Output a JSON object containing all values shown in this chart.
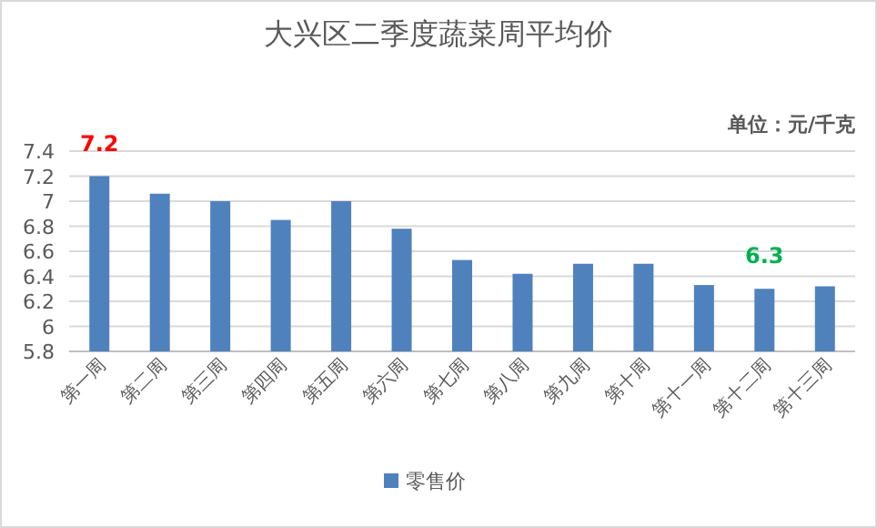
{
  "chart_data": {
    "type": "bar",
    "title": "大兴区二季度蔬菜周平均价",
    "categories": [
      "第一周",
      "第二周",
      "第三周",
      "第四周",
      "第五周",
      "第六周",
      "第七周",
      "第八周",
      "第九周",
      "第十周",
      "第十一周",
      "第十二周",
      "第十三周"
    ],
    "series": [
      {
        "name": "零售价",
        "color": "#4f81bd",
        "values": [
          7.2,
          7.06,
          7.0,
          6.85,
          7.0,
          6.78,
          6.53,
          6.42,
          6.5,
          6.5,
          6.33,
          6.3,
          6.32
        ]
      }
    ],
    "ylim": [
      5.8,
      7.4
    ],
    "yticks": [
      5.8,
      6,
      6.2,
      6.4,
      6.6,
      6.8,
      7,
      7.2,
      7.4
    ],
    "grid": "y",
    "legend": "bottom",
    "annotations": [
      {
        "text": "7.2",
        "x": "第一周",
        "y": 7.2
      },
      {
        "text": "6.3",
        "x": "第十二周",
        "y": 6.3
      },
      "单位：元/千克"
    ]
  }
}
